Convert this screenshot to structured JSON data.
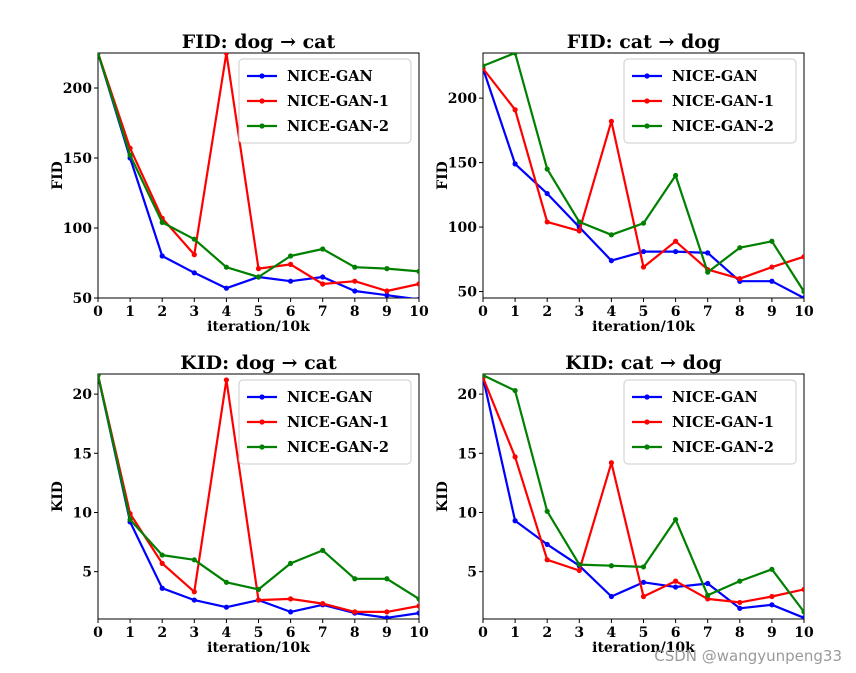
{
  "watermark": "CSDN @wangyunpeng33",
  "colors": {
    "NICE-GAN": "#0000ff",
    "NICE-GAN-1": "#ff0000",
    "NICE-GAN-2": "#008000"
  },
  "chart_data": [
    {
      "type": "line",
      "title": "FID: dog → cat",
      "xlabel": "iteration/10k",
      "ylabel": "FID",
      "x": [
        0,
        1,
        2,
        3,
        4,
        5,
        6,
        7,
        8,
        9,
        10
      ],
      "xlim": [
        0,
        10
      ],
      "ylim": [
        50,
        225
      ],
      "yticks": [
        50,
        100,
        150,
        200
      ],
      "xticks": [
        0,
        1,
        2,
        3,
        4,
        5,
        6,
        7,
        8,
        9,
        10
      ],
      "legend": "top-right",
      "series": [
        {
          "name": "NICE-GAN",
          "values": [
            225,
            150,
            80,
            68,
            57,
            65,
            62,
            65,
            55,
            52,
            49
          ]
        },
        {
          "name": "NICE-GAN-1",
          "values": [
            225,
            157,
            107,
            81,
            225,
            71,
            74,
            60,
            62,
            55,
            60
          ]
        },
        {
          "name": "NICE-GAN-2",
          "values": [
            225,
            152,
            104,
            92,
            72,
            65,
            80,
            85,
            72,
            71,
            69
          ]
        }
      ]
    },
    {
      "type": "line",
      "title": "FID: cat → dog",
      "xlabel": "iteration/10k",
      "ylabel": "FID",
      "x": [
        0,
        1,
        2,
        3,
        4,
        5,
        6,
        7,
        8,
        9,
        10
      ],
      "xlim": [
        0,
        10
      ],
      "ylim": [
        45,
        235
      ],
      "yticks": [
        50,
        100,
        150,
        200
      ],
      "xticks": [
        0,
        1,
        2,
        3,
        4,
        5,
        6,
        7,
        8,
        9,
        10
      ],
      "legend": "top-right",
      "series": [
        {
          "name": "NICE-GAN",
          "values": [
            223,
            149,
            126,
            100,
            74,
            81,
            81,
            80,
            58,
            58,
            45
          ]
        },
        {
          "name": "NICE-GAN-1",
          "values": [
            223,
            191,
            104,
            97,
            182,
            69,
            89,
            67,
            60,
            69,
            77
          ]
        },
        {
          "name": "NICE-GAN-2",
          "values": [
            225,
            235,
            145,
            104,
            94,
            103,
            140,
            65,
            84,
            89,
            50
          ]
        }
      ]
    },
    {
      "type": "line",
      "title": "KID: dog → cat",
      "xlabel": "iteration/10k",
      "ylabel": "KID",
      "x": [
        0,
        1,
        2,
        3,
        4,
        5,
        6,
        7,
        8,
        9,
        10
      ],
      "xlim": [
        0,
        10
      ],
      "ylim": [
        1,
        21.7
      ],
      "yticks": [
        5,
        10,
        15,
        20
      ],
      "xticks": [
        0,
        1,
        2,
        3,
        4,
        5,
        6,
        7,
        8,
        9,
        10
      ],
      "legend": "top-right",
      "series": [
        {
          "name": "NICE-GAN",
          "values": [
            21.6,
            9.2,
            3.6,
            2.6,
            2.0,
            2.6,
            1.6,
            2.2,
            1.5,
            1.1,
            1.5
          ]
        },
        {
          "name": "NICE-GAN-1",
          "values": [
            21.6,
            9.9,
            5.7,
            3.3,
            21.2,
            2.6,
            2.7,
            2.3,
            1.6,
            1.6,
            2.1
          ]
        },
        {
          "name": "NICE-GAN-2",
          "values": [
            21.6,
            9.4,
            6.4,
            6.0,
            4.1,
            3.5,
            5.7,
            6.8,
            4.4,
            4.4,
            2.7
          ]
        }
      ]
    },
    {
      "type": "line",
      "title": "KID: cat → dog",
      "xlabel": "iteration/10k",
      "ylabel": "KID",
      "x": [
        0,
        1,
        2,
        3,
        4,
        5,
        6,
        7,
        8,
        9,
        10
      ],
      "xlim": [
        0,
        10
      ],
      "ylim": [
        1,
        21.7
      ],
      "yticks": [
        5,
        10,
        15,
        20
      ],
      "xticks": [
        0,
        1,
        2,
        3,
        4,
        5,
        6,
        7,
        8,
        9,
        10
      ],
      "legend": "top-right",
      "series": [
        {
          "name": "NICE-GAN",
          "values": [
            21.4,
            9.3,
            7.3,
            5.5,
            2.9,
            4.1,
            3.7,
            4.0,
            1.9,
            2.2,
            1.1
          ]
        },
        {
          "name": "NICE-GAN-1",
          "values": [
            21.4,
            14.7,
            6.0,
            5.1,
            14.2,
            2.9,
            4.2,
            2.7,
            2.4,
            2.9,
            3.5
          ]
        },
        {
          "name": "NICE-GAN-2",
          "values": [
            21.6,
            20.3,
            10.1,
            5.6,
            5.5,
            5.4,
            9.4,
            3.0,
            4.2,
            5.2,
            1.6
          ]
        }
      ]
    }
  ]
}
